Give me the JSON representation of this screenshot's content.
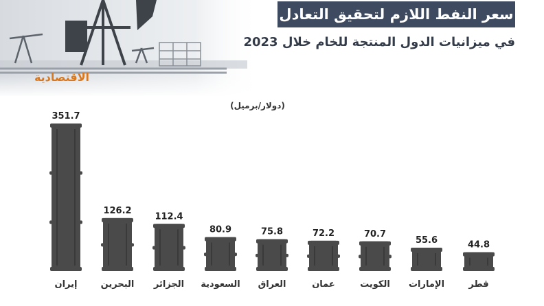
{
  "header": {
    "title": "سعر النفط اللازم لتحقيق التعادل",
    "subtitle": "في ميزانيات الدول المنتجة للخام خلال 2023",
    "brand": "الاقتصادية"
  },
  "colors": {
    "title_bg": "#3d4a5f",
    "barrel": "#4a4a4a",
    "brand": "#d9781e"
  },
  "chart_data": {
    "type": "bar",
    "ylabel": "(دولار/برميل)",
    "categories": [
      "إيران",
      "البحرين",
      "الجزائر",
      "السعودية",
      "العراق",
      "عمان",
      "الكويت",
      "الإمارات",
      "قطر"
    ],
    "values": [
      351.7,
      126.2,
      112.4,
      80.9,
      75.8,
      72.2,
      70.7,
      55.6,
      44.8
    ],
    "value_labels": [
      "351.7",
      "126.2",
      "112.4",
      "80.9",
      "75.8",
      "72.2",
      "70.7",
      "55.6",
      "44.8"
    ],
    "ylim": [
      0,
      351.7
    ],
    "grid": false
  }
}
